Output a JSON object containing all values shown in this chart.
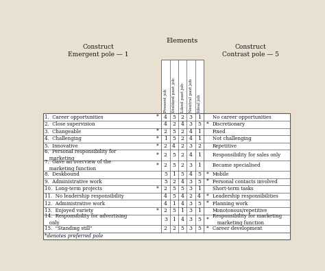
{
  "title_elements": "Elements",
  "title_left": "Construct\nEmergent pole — 1",
  "title_right": "Construct\nContrast pole — 5",
  "col_headers": [
    "Present job",
    "Disliked past job",
    "Liked past job",
    "Neutral past job",
    "Ideal job"
  ],
  "rows": [
    {
      "num": "1.",
      "left": "Career opportunities",
      "star_left": true,
      "vals": [
        4,
        5,
        2,
        3,
        1
      ],
      "star_right": false,
      "right": "No career opportunities"
    },
    {
      "num": "2.",
      "left": "Close supervision",
      "star_left": false,
      "vals": [
        4,
        2,
        4,
        3,
        5
      ],
      "star_right": true,
      "right": "Discretionary"
    },
    {
      "num": "3.",
      "left": "Changeable",
      "star_left": true,
      "vals": [
        2,
        5,
        2,
        4,
        1
      ],
      "star_right": false,
      "right": "Fixed"
    },
    {
      "num": "4.",
      "left": "Challenging",
      "star_left": true,
      "vals": [
        1,
        5,
        2,
        4,
        1
      ],
      "star_right": false,
      "right": "Not challenging"
    },
    {
      "num": "5.",
      "left": "Innovative",
      "star_left": true,
      "vals": [
        2,
        4,
        2,
        3,
        2
      ],
      "star_right": false,
      "right": "Repetitive"
    },
    {
      "num": "6.",
      "left": "Personal responsibility for\n   marketing",
      "star_left": true,
      "vals": [
        2,
        5,
        2,
        4,
        1
      ],
      "star_right": false,
      "right": "Responsibility for sales only"
    },
    {
      "num": "7.",
      "left": "Gave an overview of the\n   marketing function",
      "star_left": true,
      "vals": [
        2,
        5,
        2,
        3,
        1
      ],
      "star_right": false,
      "right": "Became specialised"
    },
    {
      "num": "8.",
      "left": "Deskbound",
      "star_left": false,
      "vals": [
        5,
        1,
        5,
        4,
        5
      ],
      "star_right": true,
      "right": "Mobile"
    },
    {
      "num": "9.",
      "left": "Administrative work",
      "star_left": false,
      "vals": [
        5,
        2,
        4,
        3,
        5
      ],
      "star_right": true,
      "right": "Personal contacts involved"
    },
    {
      "num": "10.",
      "left": "Long-term projects",
      "star_left": true,
      "vals": [
        2,
        5,
        5,
        3,
        1
      ],
      "star_right": false,
      "right": "Short-term tasks"
    },
    {
      "num": "11.",
      "left": "No leadership responsibility",
      "star_left": false,
      "vals": [
        4,
        5,
        4,
        2,
        4
      ],
      "star_right": true,
      "right": "Leadership responsibilities"
    },
    {
      "num": "12.",
      "left": "Administrative work",
      "star_left": false,
      "vals": [
        4,
        1,
        4,
        3,
        5
      ],
      "star_right": true,
      "right": "Planning work"
    },
    {
      "num": "13.",
      "left": "Enjoyed variety",
      "star_left": true,
      "vals": [
        2,
        5,
        1,
        3,
        1
      ],
      "star_right": false,
      "right": "Monotonous/repetitive"
    },
    {
      "num": "14.",
      "left": "Responsibility for advertising\n   only",
      "star_left": false,
      "vals": [
        3,
        1,
        4,
        3,
        5
      ],
      "star_right": true,
      "right": "Responsibility for marketing\n   marketing function"
    },
    {
      "num": "15.",
      "left": "\"Standing still\"",
      "star_left": false,
      "vals": [
        2,
        2,
        5,
        3,
        5
      ],
      "star_right": true,
      "right": "Career development"
    }
  ],
  "footnote": "*denotes preferred pole",
  "bg_color": "#e8e0d0",
  "table_bg": "#ffffff",
  "text_color": "#111111",
  "line_color": "#555555",
  "header_bg": "#ffffff"
}
